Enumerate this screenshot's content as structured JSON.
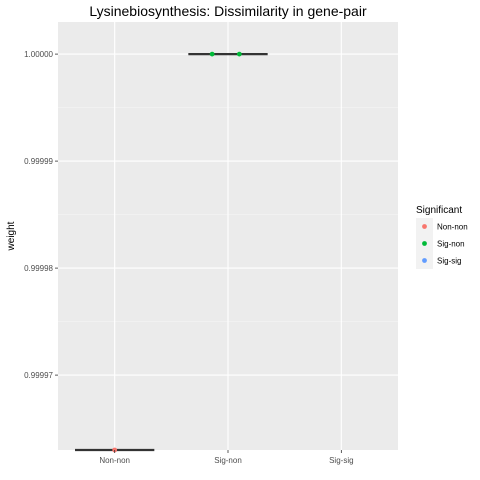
{
  "chart_data": {
    "type": "boxplot",
    "title": "Lysinebiosynthesis: Dissimilarity in gene-pair",
    "xlabel": "",
    "ylabel": "weight",
    "categories": [
      "Non-non",
      "Sig-non",
      "Sig-sig"
    ],
    "ylim": [
      0.999963,
      1.000003
    ],
    "yticks": [
      0.99997,
      0.99998,
      0.99999,
      1.0
    ],
    "ytick_labels": [
      "0.99997",
      "0.99998",
      "0.99999",
      "1.00000"
    ],
    "boxes": [
      {
        "category": "Non-non",
        "median": 0.999963
      },
      {
        "category": "Sig-non",
        "median": 1.0
      },
      {
        "category": "Sig-sig",
        "median": null
      }
    ],
    "points": [
      {
        "category": "Non-non",
        "y": 0.999963,
        "group": "Non-non",
        "jitter": 0
      },
      {
        "category": "Sig-non",
        "y": 1.0,
        "group": "Sig-non",
        "jitter": -0.14
      },
      {
        "category": "Sig-non",
        "y": 1.0,
        "group": "Sig-non",
        "jitter": 0.1
      }
    ],
    "legend": {
      "title": "Significant",
      "position": "right",
      "entries": [
        {
          "label": "Non-non",
          "color": "#F8766D"
        },
        {
          "label": "Sig-non",
          "color": "#00BA38"
        },
        {
          "label": "Sig-sig",
          "color": "#619CFF"
        }
      ]
    },
    "grid": true,
    "panel_color": "#EBEBEB"
  }
}
